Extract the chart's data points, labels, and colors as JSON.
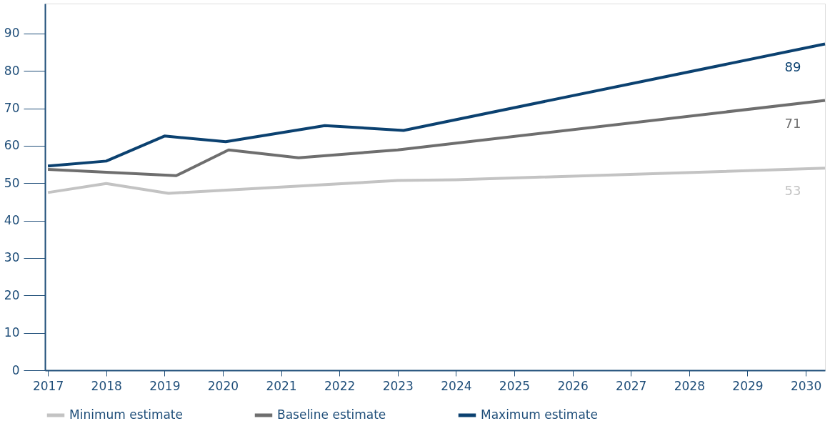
{
  "chart_data": {
    "type": "line",
    "xlim": [
      2016.95,
      2030.33
    ],
    "xticks": [
      2017,
      2018,
      2019,
      2020,
      2021,
      2022,
      2023,
      2024,
      2025,
      2026,
      2027,
      2028,
      2029,
      2030
    ],
    "ylim": [
      0,
      98
    ],
    "yticks": [
      0,
      10,
      20,
      30,
      40,
      50,
      60,
      70,
      80,
      90
    ],
    "series": [
      {
        "name": "Minimum estimate",
        "color": "#c3c3c3",
        "x": [
          2017,
          2018,
          2019.07,
          2023,
          2024,
          2030.33
        ],
        "values": [
          47.5,
          49.9,
          47.3,
          50.7,
          50.9,
          54.0
        ]
      },
      {
        "name": "Baseline estimate",
        "color": "#6e6e6e",
        "x": [
          2017,
          2019.2,
          2020.1,
          2021.3,
          2023,
          2030.33
        ],
        "values": [
          53.7,
          52.0,
          58.9,
          56.8,
          58.9,
          72.1
        ]
      },
      {
        "name": "Maximum estimate",
        "color": "#0b4170",
        "x": [
          2017,
          2018,
          2019,
          2020.05,
          2021.75,
          2023.1,
          2030.33
        ],
        "values": [
          54.6,
          55.9,
          62.6,
          61.1,
          65.4,
          64.1,
          87.2
        ]
      }
    ],
    "annotations": [
      "53",
      "71",
      "89"
    ],
    "grid": false,
    "legend": "bottom",
    "marker": "none",
    "line_style": "solid"
  }
}
